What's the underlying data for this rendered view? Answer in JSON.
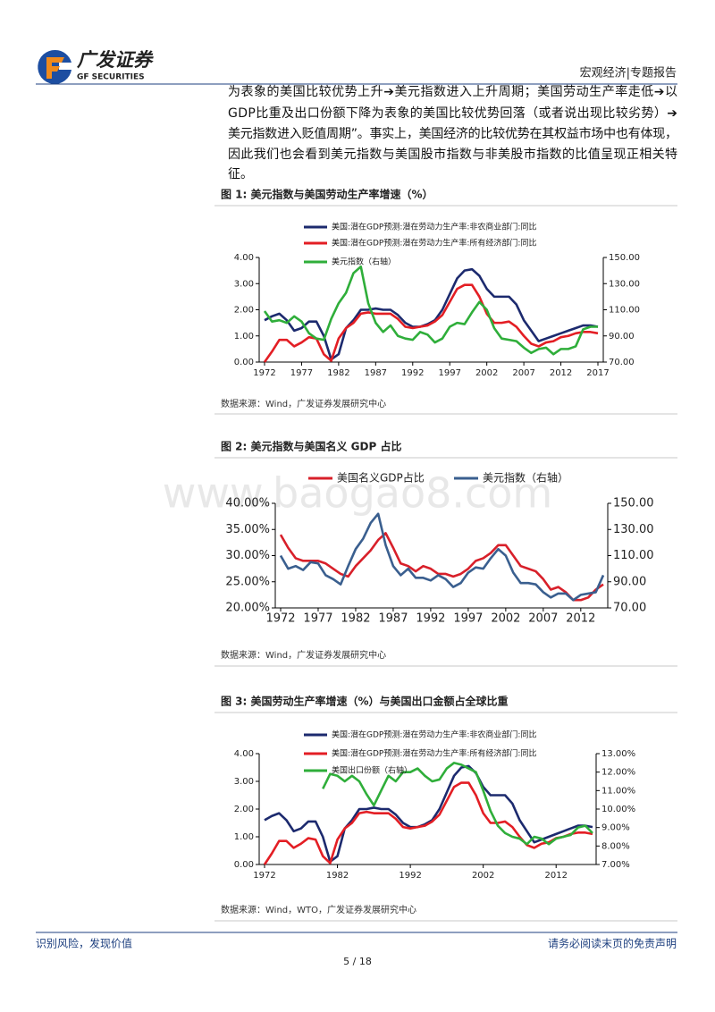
{
  "header": {
    "brand": "广发证券",
    "brand_en": "GF SECURITIES",
    "section": "宏观经济|专题报告"
  },
  "body": [
    "为表象的美国比较优势上升➔美元指数进入上升周期；美国劳动生产率走低➔以",
    "GDP比重及出口份额下降为表象的美国比较优势回落（或者说出现比较劣势）➔",
    "美元指数进入贬值周期”。事实上，美国经济的比较优势在其权益市场中也有体现，",
    "因此我们也会看到美元指数与美国股市指数与非美股市指数的比值呈现正相关特",
    "征。"
  ],
  "watermark": "www.baogao8.com",
  "footer": {
    "left": "识别风险，发现价值",
    "right": "请务必阅读末页的免责声明",
    "page": "5 / 18"
  },
  "chart_data": [
    {
      "type": "line",
      "title": "图 1: 美元指数与美国劳动生产率增速（%）",
      "source": "数据来源：Wind，广发证券发展研究中心",
      "x": [
        1972,
        1973,
        1974,
        1975,
        1976,
        1977,
        1978,
        1979,
        1980,
        1981,
        1982,
        1983,
        1984,
        1985,
        1986,
        1987,
        1988,
        1989,
        1990,
        1991,
        1992,
        1993,
        1994,
        1995,
        1996,
        1997,
        1998,
        1999,
        2000,
        2001,
        2002,
        2003,
        2004,
        2005,
        2006,
        2007,
        2008,
        2009,
        2010,
        2011,
        2012,
        2013,
        2014,
        2015,
        2016,
        2017
      ],
      "xlim": [
        1972,
        2017
      ],
      "xticks": [
        1972,
        1977,
        1982,
        1987,
        1992,
        1997,
        2002,
        2007,
        2012,
        2017
      ],
      "ylim": [
        0,
        4
      ],
      "yticks": [
        {
          "value": 0,
          "label": "0.00"
        },
        {
          "value": 1,
          "label": "1.00"
        },
        {
          "value": 2,
          "label": "2.00"
        },
        {
          "value": 3,
          "label": "3.00"
        },
        {
          "value": 4,
          "label": "4.00"
        }
      ],
      "y2lim": [
        70,
        150
      ],
      "y2ticks": [
        {
          "value": 70,
          "label": "70.00"
        },
        {
          "value": 90,
          "label": "90.00"
        },
        {
          "value": 110,
          "label": "110.00"
        },
        {
          "value": 130,
          "label": "130.00"
        },
        {
          "value": 150,
          "label": "150.00"
        }
      ],
      "series": [
        {
          "name": "美国:潜在GDP预测:潜在劳动力生产率:非农商业部门:同比",
          "color": "#1c2a6e",
          "values": [
            1.6,
            1.75,
            1.85,
            1.6,
            1.2,
            1.3,
            1.55,
            1.55,
            1.0,
            0.1,
            0.3,
            1.3,
            1.6,
            2.0,
            2.0,
            2.05,
            2.0,
            2.0,
            1.8,
            1.5,
            1.35,
            1.35,
            1.45,
            1.6,
            2.0,
            2.6,
            3.2,
            3.5,
            3.55,
            3.3,
            2.8,
            2.5,
            2.5,
            2.5,
            2.2,
            1.6,
            1.2,
            0.8,
            0.9,
            1.0,
            1.1,
            1.2,
            1.3,
            1.4,
            1.4,
            1.35
          ]
        },
        {
          "name": "美国:潜在GDP预测:潜在劳动力生产率:所有经济部门:同比",
          "color": "#e31e24",
          "values": [
            0.0,
            0.4,
            0.85,
            0.85,
            0.6,
            0.75,
            0.95,
            0.9,
            0.3,
            0.05,
            0.9,
            1.3,
            1.5,
            1.85,
            1.9,
            1.85,
            1.85,
            1.85,
            1.65,
            1.35,
            1.3,
            1.35,
            1.4,
            1.55,
            1.8,
            2.3,
            2.8,
            2.95,
            2.95,
            2.5,
            1.85,
            1.5,
            1.5,
            1.55,
            1.35,
            1.0,
            0.7,
            0.6,
            0.75,
            0.8,
            0.95,
            1.0,
            1.1,
            1.15,
            1.15,
            1.1
          ]
        },
        {
          "name": "美元指数（右轴）",
          "color": "#2fae3a",
          "axis": "y2",
          "values": [
            109,
            101,
            102,
            100,
            105,
            101,
            92,
            88,
            87,
            103,
            115,
            123,
            138,
            143,
            115,
            100,
            93,
            98,
            90,
            88,
            87,
            93,
            91,
            85,
            88,
            97,
            100,
            99,
            108,
            116,
            110,
            96,
            88,
            87,
            86,
            81,
            77,
            80,
            81,
            76,
            80,
            80,
            82,
            95,
            97,
            97
          ]
        }
      ]
    },
    {
      "type": "line",
      "title": "图 2: 美元指数与美国名义 GDP 占比",
      "source": "数据来源：Wind，广发证券发展研究中心",
      "x": [
        1972,
        1973,
        1974,
        1975,
        1976,
        1977,
        1978,
        1979,
        1980,
        1981,
        1982,
        1983,
        1984,
        1985,
        1986,
        1987,
        1988,
        1989,
        1990,
        1991,
        1992,
        1993,
        1994,
        1995,
        1996,
        1997,
        1998,
        1999,
        2000,
        2001,
        2002,
        2003,
        2004,
        2005,
        2006,
        2007,
        2008,
        2009,
        2010,
        2011,
        2012,
        2013,
        2014,
        2015
      ],
      "xlim": [
        1972,
        2015
      ],
      "xticks": [
        1972,
        1977,
        1982,
        1987,
        1992,
        1997,
        2002,
        2007,
        2012
      ],
      "ylim": [
        20,
        40
      ],
      "yticks": [
        {
          "value": 20,
          "label": "20.00%"
        },
        {
          "value": 25,
          "label": "25.00%"
        },
        {
          "value": 30,
          "label": "30.00%"
        },
        {
          "value": 35,
          "label": "35.00%"
        },
        {
          "value": 40,
          "label": "40.00%"
        }
      ],
      "y2lim": [
        70,
        150
      ],
      "y2ticks": [
        {
          "value": 70,
          "label": "70.00"
        },
        {
          "value": 90,
          "label": "90.00"
        },
        {
          "value": 110,
          "label": "110.00"
        },
        {
          "value": 130,
          "label": "130.00"
        },
        {
          "value": 150,
          "label": "150.00"
        }
      ],
      "series": [
        {
          "name": "美国名义GDP占比",
          "color": "#d8202a",
          "values": [
            34,
            31.5,
            29.5,
            29,
            29,
            29,
            28.5,
            27.5,
            26.5,
            26,
            28,
            29.5,
            31,
            33,
            34.3,
            31.5,
            28.5,
            28,
            27,
            28,
            27.5,
            26.5,
            26.5,
            26,
            26.5,
            27.5,
            29,
            29.5,
            30.5,
            32,
            32,
            30,
            28,
            27.5,
            27,
            25.5,
            23.5,
            24,
            23,
            21.5,
            21.5,
            22,
            23.5,
            24.5
          ]
        },
        {
          "name": "美元指数（右轴）",
          "color": "#3a5f8f",
          "axis": "y2",
          "values": [
            110,
            100,
            102,
            99,
            105,
            104,
            95,
            92,
            88,
            102,
            115,
            123,
            135,
            142,
            118,
            102,
            95,
            100,
            93,
            93,
            91,
            95,
            92,
            86,
            89,
            97,
            101,
            100,
            108,
            115,
            110,
            97,
            89,
            89,
            88,
            82,
            78,
            81,
            81,
            76,
            80,
            81,
            82,
            95
          ]
        }
      ]
    },
    {
      "type": "line",
      "title": "图 3: 美国劳动生产率增速（%）与美国出口金额占全球比重",
      "source": "数据来源：Wind，WTO，广发证券发展研究中心",
      "x": [
        1972,
        1973,
        1974,
        1975,
        1976,
        1977,
        1978,
        1979,
        1980,
        1981,
        1982,
        1983,
        1984,
        1985,
        1986,
        1987,
        1988,
        1989,
        1990,
        1991,
        1992,
        1993,
        1994,
        1995,
        1996,
        1997,
        1998,
        1999,
        2000,
        2001,
        2002,
        2003,
        2004,
        2005,
        2006,
        2007,
        2008,
        2009,
        2010,
        2011,
        2012,
        2013,
        2014,
        2015,
        2016,
        2017
      ],
      "xlim": [
        1972,
        2017
      ],
      "xticks": [
        1972,
        1982,
        1992,
        2002,
        2012
      ],
      "ylim": [
        0,
        4
      ],
      "yticks": [
        {
          "value": 0,
          "label": "0.00"
        },
        {
          "value": 1,
          "label": "1.00"
        },
        {
          "value": 2,
          "label": "2.00"
        },
        {
          "value": 3,
          "label": "3.00"
        },
        {
          "value": 4,
          "label": "4.00"
        }
      ],
      "y2lim": [
        7,
        13
      ],
      "y2ticks": [
        {
          "value": 7,
          "label": "7.00%"
        },
        {
          "value": 8,
          "label": "8.00%"
        },
        {
          "value": 9,
          "label": "9.00%"
        },
        {
          "value": 10,
          "label": "10.00%"
        },
        {
          "value": 11,
          "label": "11.00%"
        },
        {
          "value": 12,
          "label": "12.00%"
        },
        {
          "value": 13,
          "label": "13.00%"
        }
      ],
      "series": [
        {
          "name": "美国:潜在GDP预测:潜在劳动力生产率:非农商业部门:同比",
          "color": "#1c2a6e",
          "values": [
            1.6,
            1.75,
            1.85,
            1.6,
            1.2,
            1.3,
            1.55,
            1.55,
            1.0,
            0.1,
            0.3,
            1.3,
            1.6,
            2.0,
            2.0,
            2.05,
            2.0,
            2.0,
            1.8,
            1.5,
            1.35,
            1.35,
            1.45,
            1.6,
            2.0,
            2.6,
            3.2,
            3.5,
            3.55,
            3.3,
            2.8,
            2.5,
            2.5,
            2.5,
            2.2,
            1.6,
            1.2,
            0.8,
            0.9,
            1.0,
            1.1,
            1.2,
            1.3,
            1.4,
            1.4,
            1.35
          ]
        },
        {
          "name": "美国:潜在GDP预测:潜在劳动力生产率:所有经济部门:同比",
          "color": "#e31e24",
          "values": [
            0.0,
            0.4,
            0.85,
            0.85,
            0.6,
            0.75,
            0.95,
            0.9,
            0.3,
            0.05,
            0.9,
            1.3,
            1.5,
            1.85,
            1.9,
            1.85,
            1.85,
            1.85,
            1.65,
            1.35,
            1.3,
            1.35,
            1.4,
            1.55,
            1.8,
            2.3,
            2.8,
            2.95,
            2.95,
            2.5,
            1.85,
            1.5,
            1.5,
            1.55,
            1.35,
            1.0,
            0.7,
            0.6,
            0.75,
            0.8,
            0.95,
            1.0,
            1.1,
            1.15,
            1.15,
            1.1
          ]
        },
        {
          "name": "美国出口份额（右轴）",
          "color": "#2fae3a",
          "axis": "y2",
          "values": [
            null,
            null,
            null,
            null,
            null,
            null,
            null,
            null,
            11.1,
            11.9,
            11.8,
            11.5,
            11.8,
            11.5,
            10.8,
            10.2,
            11.0,
            11.8,
            11.5,
            12.0,
            12.0,
            12.2,
            11.8,
            11.5,
            11.6,
            12.2,
            12.5,
            12.4,
            12.2,
            12.0,
            11.0,
            9.9,
            9.1,
            8.7,
            8.5,
            8.4,
            8.1,
            8.5,
            8.4,
            8.1,
            8.4,
            8.5,
            8.6,
            9.0,
            9.1,
            8.7
          ]
        }
      ]
    }
  ]
}
